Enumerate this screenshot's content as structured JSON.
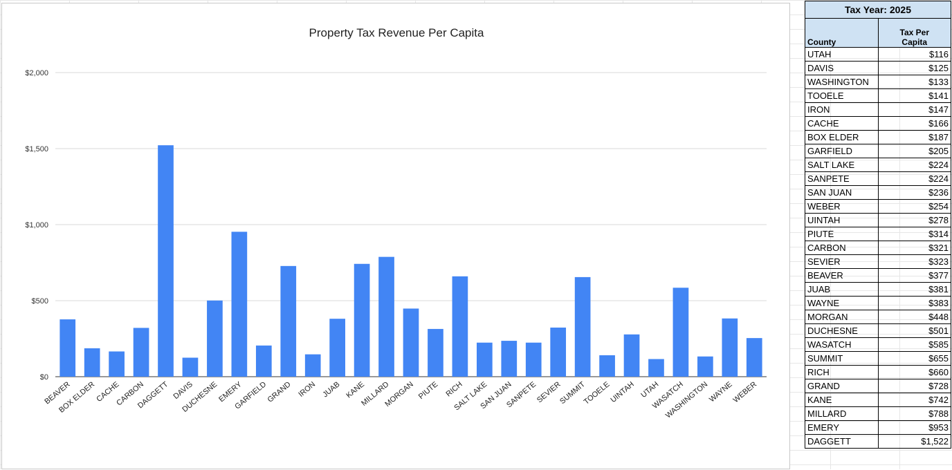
{
  "chart_data": {
    "type": "bar",
    "title": "Property Tax Revenue Per Capita",
    "xlabel": "",
    "ylabel": "",
    "ylim": [
      0,
      2000
    ],
    "yticks": [
      0,
      500,
      1000,
      1500,
      2000
    ],
    "ytick_labels": [
      "$0",
      "$500",
      "$1,000",
      "$1,500",
      "$2,000"
    ],
    "grid": true,
    "legend": "none",
    "bar_color": "#4285f4",
    "categories": [
      "BEAVER",
      "BOX ELDER",
      "CACHE",
      "CARBON",
      "DAGGETT",
      "DAVIS",
      "DUCHESNE",
      "EMERY",
      "GARFIELD",
      "GRAND",
      "IRON",
      "JUAB",
      "KANE",
      "MILLARD",
      "MORGAN",
      "PIUTE",
      "RICH",
      "SALT LAKE",
      "SAN JUAN",
      "SANPETE",
      "SEVIER",
      "SUMMIT",
      "TOOELE",
      "UINTAH",
      "UTAH",
      "WASATCH",
      "WASHINGTON",
      "WAYNE",
      "WEBER"
    ],
    "values": [
      377,
      187,
      166,
      321,
      1522,
      125,
      501,
      953,
      205,
      728,
      147,
      381,
      742,
      788,
      448,
      314,
      660,
      224,
      236,
      224,
      323,
      655,
      141,
      278,
      116,
      585,
      133,
      383,
      254
    ]
  },
  "table": {
    "title": "Tax Year: 2025",
    "header_county": "County",
    "header_tax_line1": "Tax Per",
    "header_tax_line2": "Capita",
    "header_bg": "#cfe2f3",
    "rows": [
      {
        "county": "UTAH",
        "value": "$116"
      },
      {
        "county": "DAVIS",
        "value": "$125"
      },
      {
        "county": "WASHINGTON",
        "value": "$133"
      },
      {
        "county": "TOOELE",
        "value": "$141"
      },
      {
        "county": "IRON",
        "value": "$147"
      },
      {
        "county": "CACHE",
        "value": "$166"
      },
      {
        "county": "BOX ELDER",
        "value": "$187"
      },
      {
        "county": "GARFIELD",
        "value": "$205"
      },
      {
        "county": "SALT LAKE",
        "value": "$224"
      },
      {
        "county": "SANPETE",
        "value": "$224"
      },
      {
        "county": "SAN JUAN",
        "value": "$236"
      },
      {
        "county": "WEBER",
        "value": "$254"
      },
      {
        "county": "UINTAH",
        "value": "$278"
      },
      {
        "county": "PIUTE",
        "value": "$314"
      },
      {
        "county": "CARBON",
        "value": "$321"
      },
      {
        "county": "SEVIER",
        "value": "$323"
      },
      {
        "county": "BEAVER",
        "value": "$377"
      },
      {
        "county": "JUAB",
        "value": "$381"
      },
      {
        "county": "WAYNE",
        "value": "$383"
      },
      {
        "county": "MORGAN",
        "value": "$448"
      },
      {
        "county": "DUCHESNE",
        "value": "$501"
      },
      {
        "county": "WASATCH",
        "value": "$585"
      },
      {
        "county": "SUMMIT",
        "value": "$655"
      },
      {
        "county": "RICH",
        "value": "$660"
      },
      {
        "county": "GRAND",
        "value": "$728"
      },
      {
        "county": "KANE",
        "value": "$742"
      },
      {
        "county": "MILLARD",
        "value": "$788"
      },
      {
        "county": "EMERY",
        "value": "$953"
      },
      {
        "county": "DAGGETT",
        "value": "$1,522"
      }
    ]
  }
}
